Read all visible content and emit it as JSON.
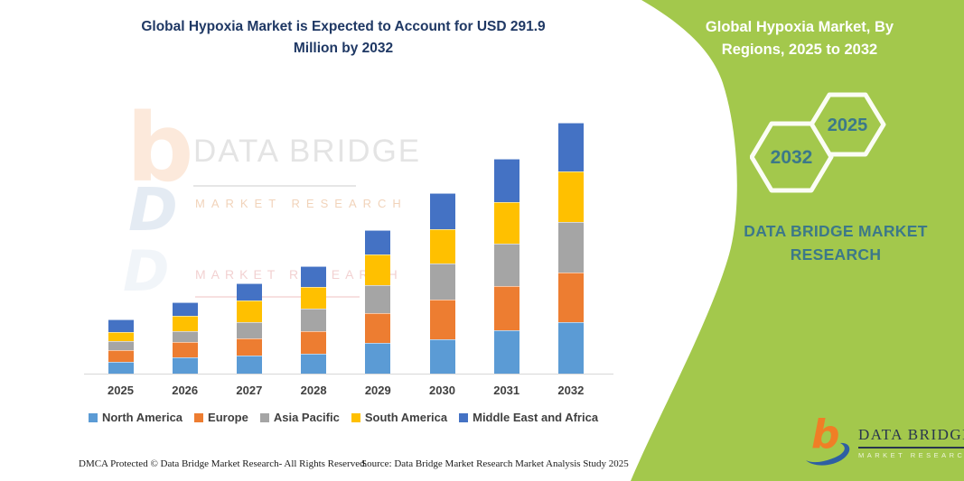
{
  "main": {
    "title_line1": "Global Hypoxia Market is Expected to Account for USD 291.9",
    "title_line2": "Million by 2032",
    "title_color": "#1F3864",
    "footer_left": "DMCA Protected © Data Bridge Market Research-  All Rights Reserved.",
    "footer_right": "Source: Data Bridge Market Research  Market Analysis Study 2025"
  },
  "chart_data": {
    "type": "bar",
    "stacked": true,
    "title": "Global Hypoxia Market is Expected to Account for USD 291.9 Million by 2032",
    "unit": "USD Million",
    "categories": [
      "2025",
      "2026",
      "2027",
      "2028",
      "2029",
      "2030",
      "2031",
      "2032"
    ],
    "series": [
      {
        "name": "North America",
        "color": "#5B9BD5",
        "values": [
          13.9,
          18.9,
          21.0,
          23.4,
          36.0,
          40.2,
          50.7,
          59.5
        ]
      },
      {
        "name": "Europe",
        "color": "#ED7D31",
        "values": [
          12.9,
          17.5,
          19.9,
          26.2,
          33.9,
          45.4,
          50.7,
          58.4
        ]
      },
      {
        "name": "Asia Pacific",
        "color": "#A5A5A5",
        "values": [
          10.5,
          12.6,
          19.2,
          26.2,
          33.2,
          42.0,
          50.0,
          58.7
        ]
      },
      {
        "name": "South America",
        "color": "#FFC000",
        "values": [
          11.5,
          18.2,
          25.2,
          24.5,
          35.7,
          40.2,
          47.9,
          58.7
        ]
      },
      {
        "name": "Middle East and Africa",
        "color": "#4472C4",
        "values": [
          13.9,
          15.7,
          19.2,
          24.5,
          28.0,
          42.0,
          50.7,
          56.6
        ]
      }
    ],
    "totals": [
      62.7,
      82.9,
      104.5,
      124.8,
      166.8,
      209.8,
      250.0,
      291.9
    ],
    "ylim": [
      0,
      300
    ],
    "grid": false,
    "y_axis_visible": false,
    "legend_position": "bottom"
  },
  "watermark": {
    "logo_b": "b",
    "logo_d": "D",
    "brand": "DATA BRIDGE",
    "sub": "MARKET RESEARCH",
    "repeat_sub": "MARKET RESEARCH"
  },
  "side_panel": {
    "bg_color": "#A3C84C",
    "accent_color": "#3C7889",
    "title_line1": "Global Hypoxia Market, By",
    "title_line2": "Regions, 2025 to 2032",
    "hexagons": [
      {
        "label": "2032"
      },
      {
        "label": "2025"
      }
    ],
    "brand_line1": "DATA BRIDGE MARKET",
    "brand_line2": "RESEARCH",
    "logo": {
      "glyph": "b",
      "name": "DATA BRIDGE",
      "subtext": "MARKET RESEARCH"
    }
  }
}
